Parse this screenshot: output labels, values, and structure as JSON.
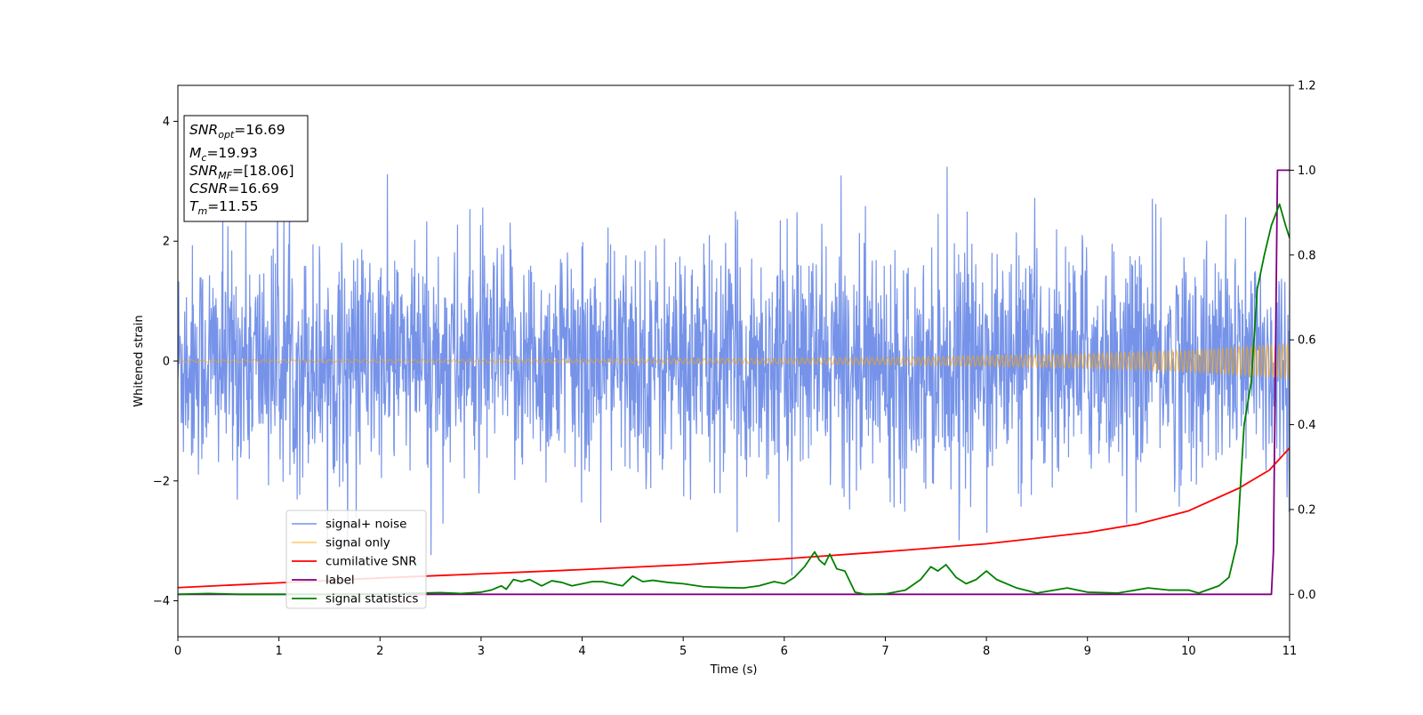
{
  "chart_data": {
    "type": "line",
    "xlabel": "Time (s)",
    "ylabel": "Whitened strain",
    "xlim": [
      0,
      11
    ],
    "ylim": [
      -4.6,
      4.6
    ],
    "y2lim": [
      -0.1,
      1.2
    ],
    "x_ticks": [
      "0",
      "1",
      "2",
      "3",
      "4",
      "5",
      "6",
      "7",
      "8",
      "9",
      "10",
      "11"
    ],
    "y_ticks": [
      "4",
      "2",
      "0",
      "−2",
      "−4"
    ],
    "y2_ticks": [
      "1.2",
      "1.0",
      "0.8",
      "0.6",
      "0.4",
      "0.2",
      "0.0"
    ],
    "grid": false,
    "legend_position": "lower-left",
    "info_box": {
      "lines": [
        {
          "sym": "SNR",
          "sub": "opt",
          "val": "=16.69"
        },
        {
          "sym": "M",
          "sub": "c",
          "val": "=19.93"
        },
        {
          "sym": "SNR",
          "sub": "MF",
          "val": "=[18.06]"
        },
        {
          "sym": "CSNR",
          "sub": "",
          "val": "=16.69"
        },
        {
          "sym": "T",
          "sub": "m",
          "val": "=11.55"
        }
      ]
    },
    "series": [
      {
        "name": "signal+ noise",
        "color": "#4169e1",
        "axis": "left",
        "style": "noise",
        "amplitude_std": 0.95
      },
      {
        "name": "signal only",
        "color": "#ffa500",
        "axis": "left",
        "style": "chirp",
        "envelope": [
          [
            0,
            0.02
          ],
          [
            4,
            0.03
          ],
          [
            7,
            0.06
          ],
          [
            9,
            0.12
          ],
          [
            10,
            0.18
          ],
          [
            11,
            0.3
          ]
        ]
      },
      {
        "name": "cumilative SNR",
        "color": "#ff0000",
        "axis": "left",
        "points": [
          [
            0,
            -3.78
          ],
          [
            1,
            -3.7
          ],
          [
            2,
            -3.62
          ],
          [
            3,
            -3.55
          ],
          [
            4,
            -3.48
          ],
          [
            5,
            -3.4
          ],
          [
            6,
            -3.3
          ],
          [
            7,
            -3.18
          ],
          [
            8,
            -3.05
          ],
          [
            9,
            -2.86
          ],
          [
            9.5,
            -2.72
          ],
          [
            10,
            -2.5
          ],
          [
            10.5,
            -2.12
          ],
          [
            10.8,
            -1.82
          ],
          [
            11,
            -1.45
          ]
        ]
      },
      {
        "name": "label",
        "color": "#800080",
        "axis": "right",
        "points": [
          [
            0,
            0
          ],
          [
            10.82,
            0
          ],
          [
            10.84,
            0.1
          ],
          [
            10.88,
            1.0
          ],
          [
            11,
            1.0
          ]
        ]
      },
      {
        "name": "signal statistics",
        "color": "#008000",
        "axis": "right",
        "points": [
          [
            0,
            0.0
          ],
          [
            0.3,
            0.002
          ],
          [
            0.6,
            0.0
          ],
          [
            1.5,
            0.0
          ],
          [
            2.2,
            0.002
          ],
          [
            2.6,
            0.004
          ],
          [
            2.8,
            0.002
          ],
          [
            3.0,
            0.005
          ],
          [
            3.1,
            0.01
          ],
          [
            3.2,
            0.02
          ],
          [
            3.25,
            0.012
          ],
          [
            3.32,
            0.035
          ],
          [
            3.4,
            0.03
          ],
          [
            3.48,
            0.035
          ],
          [
            3.6,
            0.02
          ],
          [
            3.7,
            0.032
          ],
          [
            3.8,
            0.028
          ],
          [
            3.9,
            0.02
          ],
          [
            4.0,
            0.025
          ],
          [
            4.1,
            0.03
          ],
          [
            4.2,
            0.03
          ],
          [
            4.3,
            0.025
          ],
          [
            4.4,
            0.02
          ],
          [
            4.5,
            0.043
          ],
          [
            4.6,
            0.03
          ],
          [
            4.7,
            0.033
          ],
          [
            4.85,
            0.028
          ],
          [
            5.0,
            0.025
          ],
          [
            5.2,
            0.018
          ],
          [
            5.4,
            0.016
          ],
          [
            5.6,
            0.015
          ],
          [
            5.75,
            0.02
          ],
          [
            5.9,
            0.03
          ],
          [
            6.0,
            0.025
          ],
          [
            6.1,
            0.04
          ],
          [
            6.2,
            0.065
          ],
          [
            6.3,
            0.1
          ],
          [
            6.35,
            0.08
          ],
          [
            6.4,
            0.07
          ],
          [
            6.45,
            0.095
          ],
          [
            6.52,
            0.06
          ],
          [
            6.6,
            0.055
          ],
          [
            6.7,
            0.005
          ],
          [
            6.8,
            0.0
          ],
          [
            7.0,
            0.001
          ],
          [
            7.2,
            0.01
          ],
          [
            7.35,
            0.035
          ],
          [
            7.45,
            0.065
          ],
          [
            7.52,
            0.055
          ],
          [
            7.6,
            0.07
          ],
          [
            7.7,
            0.04
          ],
          [
            7.8,
            0.025
          ],
          [
            7.9,
            0.035
          ],
          [
            8.0,
            0.055
          ],
          [
            8.1,
            0.035
          ],
          [
            8.3,
            0.015
          ],
          [
            8.5,
            0.003
          ],
          [
            8.8,
            0.015
          ],
          [
            9.0,
            0.005
          ],
          [
            9.3,
            0.003
          ],
          [
            9.6,
            0.015
          ],
          [
            9.8,
            0.01
          ],
          [
            10.0,
            0.01
          ],
          [
            10.1,
            0.003
          ],
          [
            10.3,
            0.02
          ],
          [
            10.4,
            0.04
          ],
          [
            10.48,
            0.12
          ],
          [
            10.55,
            0.4
          ],
          [
            10.62,
            0.5
          ],
          [
            10.68,
            0.72
          ],
          [
            10.75,
            0.8
          ],
          [
            10.82,
            0.87
          ],
          [
            10.9,
            0.92
          ],
          [
            10.96,
            0.87
          ],
          [
            11.0,
            0.84
          ]
        ]
      }
    ]
  }
}
